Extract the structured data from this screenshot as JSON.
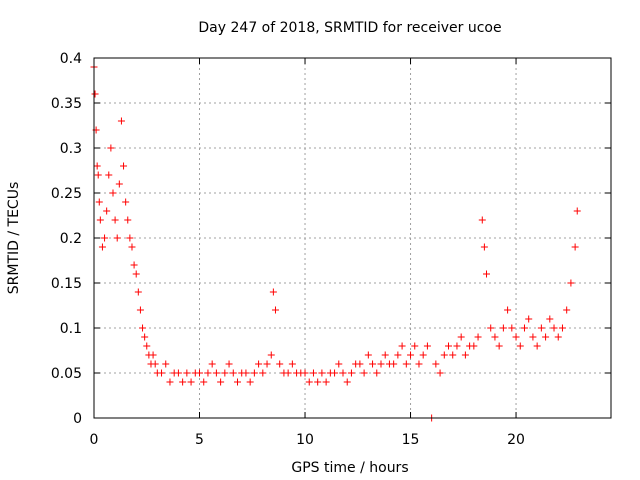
{
  "chart_data": {
    "type": "scatter",
    "title": "Day 247 of 2018, SRMTID for receiver ucoe",
    "xlabel": "GPS time / hours",
    "ylabel": "SRMTID / TECUs",
    "xlim": [
      0,
      24.5
    ],
    "ylim": [
      0,
      0.4
    ],
    "xticks": [
      0,
      5,
      10,
      15,
      20
    ],
    "xtick_labels": [
      "0",
      "5",
      "10",
      "15",
      "20"
    ],
    "yticks": [
      0,
      0.05,
      0.1,
      0.15,
      0.2,
      0.25,
      0.3,
      0.35,
      0.4
    ],
    "ytick_labels": [
      "0",
      "0.05",
      "0.1",
      "0.15",
      "0.2",
      "0.25",
      "0.3",
      "0.35",
      "0.4"
    ],
    "grid": true,
    "marker": "+",
    "color": "#ff0000",
    "series": [
      {
        "name": "SRMTID",
        "x": [
          0.0,
          0.05,
          0.1,
          0.15,
          0.2,
          0.25,
          0.3,
          0.4,
          0.5,
          0.6,
          0.7,
          0.8,
          0.9,
          1.0,
          1.1,
          1.2,
          1.3,
          1.4,
          1.5,
          1.6,
          1.7,
          1.8,
          1.9,
          2.0,
          2.1,
          2.2,
          2.3,
          2.4,
          2.5,
          2.6,
          2.7,
          2.8,
          2.9,
          3.0,
          3.2,
          3.4,
          3.6,
          3.8,
          4.0,
          4.2,
          4.4,
          4.6,
          4.8,
          5.0,
          5.2,
          5.4,
          5.6,
          5.8,
          6.0,
          6.2,
          6.4,
          6.6,
          6.8,
          7.0,
          7.2,
          7.4,
          7.6,
          7.8,
          8.0,
          8.2,
          8.4,
          8.5,
          8.6,
          8.8,
          9.0,
          9.2,
          9.4,
          9.6,
          9.8,
          10.0,
          10.2,
          10.4,
          10.6,
          10.8,
          11.0,
          11.2,
          11.4,
          11.6,
          11.8,
          12.0,
          12.2,
          12.4,
          12.6,
          12.8,
          13.0,
          13.2,
          13.4,
          13.6,
          13.8,
          14.0,
          14.2,
          14.4,
          14.6,
          14.8,
          15.0,
          15.2,
          15.4,
          15.6,
          15.8,
          16.0,
          16.2,
          16.4,
          16.6,
          16.8,
          17.0,
          17.2,
          17.4,
          17.6,
          17.8,
          18.0,
          18.2,
          18.4,
          18.5,
          18.6,
          18.8,
          19.0,
          19.2,
          19.4,
          19.6,
          19.8,
          20.0,
          20.2,
          20.4,
          20.6,
          20.8,
          21.0,
          21.2,
          21.4,
          21.6,
          21.8,
          22.0,
          22.2,
          22.4,
          22.6,
          22.8,
          22.9
        ],
        "y": [
          0.39,
          0.36,
          0.32,
          0.28,
          0.27,
          0.24,
          0.22,
          0.19,
          0.2,
          0.23,
          0.27,
          0.3,
          0.25,
          0.22,
          0.2,
          0.26,
          0.33,
          0.28,
          0.24,
          0.22,
          0.2,
          0.19,
          0.17,
          0.16,
          0.14,
          0.12,
          0.1,
          0.09,
          0.08,
          0.07,
          0.06,
          0.07,
          0.06,
          0.05,
          0.05,
          0.06,
          0.04,
          0.05,
          0.05,
          0.04,
          0.05,
          0.04,
          0.05,
          0.05,
          0.04,
          0.05,
          0.06,
          0.05,
          0.04,
          0.05,
          0.06,
          0.05,
          0.04,
          0.05,
          0.05,
          0.04,
          0.05,
          0.06,
          0.05,
          0.06,
          0.07,
          0.14,
          0.12,
          0.06,
          0.05,
          0.05,
          0.06,
          0.05,
          0.05,
          0.05,
          0.04,
          0.05,
          0.04,
          0.05,
          0.04,
          0.05,
          0.05,
          0.06,
          0.05,
          0.04,
          0.05,
          0.06,
          0.06,
          0.05,
          0.07,
          0.06,
          0.05,
          0.06,
          0.07,
          0.06,
          0.06,
          0.07,
          0.08,
          0.06,
          0.07,
          0.08,
          0.06,
          0.07,
          0.08,
          0.0,
          0.06,
          0.05,
          0.07,
          0.08,
          0.07,
          0.08,
          0.09,
          0.07,
          0.08,
          0.08,
          0.09,
          0.22,
          0.19,
          0.16,
          0.1,
          0.09,
          0.08,
          0.1,
          0.12,
          0.1,
          0.09,
          0.08,
          0.1,
          0.11,
          0.09,
          0.08,
          0.1,
          0.09,
          0.11,
          0.1,
          0.09,
          0.1,
          0.12,
          0.15,
          0.19,
          0.23
        ]
      }
    ]
  }
}
